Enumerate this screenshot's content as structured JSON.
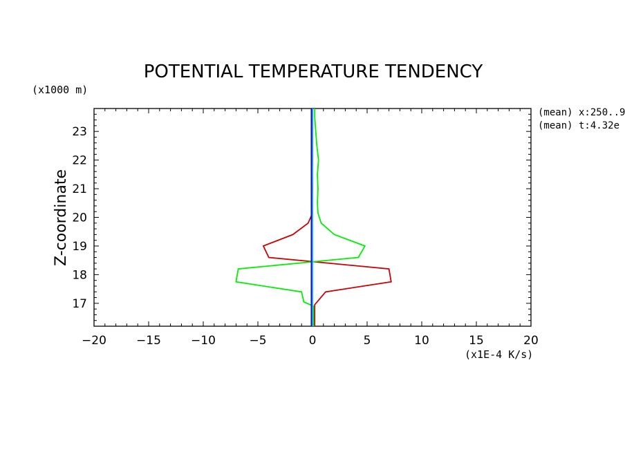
{
  "chart_data": {
    "type": "line",
    "title": "POTENTIAL TEMPERATURE TENDENCY",
    "xlabel": "",
    "ylabel": "Z-coordinate",
    "x_unit_label": "(x1E-4 K/s)",
    "y_unit_label": "(x1000 m)",
    "xlim": [
      -20,
      20
    ],
    "ylim": [
      16.2,
      23.8
    ],
    "x_ticks": [
      -20,
      -15,
      -10,
      -5,
      0,
      5,
      10,
      15,
      20
    ],
    "x_tick_labels": [
      "−20",
      "−15",
      "−10",
      "−5",
      "0",
      "5",
      "10",
      "15",
      "20"
    ],
    "y_ticks": [
      17,
      18,
      19,
      20,
      21,
      22,
      23
    ],
    "y_tick_labels": [
      "17",
      "18",
      "19",
      "20",
      "21",
      "22",
      "23"
    ],
    "grid": false,
    "annotations": [
      "(mean) x:250..9",
      "(mean) t:4.32e"
    ],
    "series": [
      {
        "color": "#cc0000",
        "points": [
          [
            0.2,
            16.2
          ],
          [
            0.2,
            16.95
          ],
          [
            1.2,
            17.4
          ],
          [
            7.2,
            17.75
          ],
          [
            7.0,
            18.2
          ],
          [
            -4.0,
            18.6
          ],
          [
            -4.5,
            19.0
          ],
          [
            -1.8,
            19.4
          ],
          [
            -0.4,
            19.8
          ],
          [
            0.0,
            20.15
          ],
          [
            -0.05,
            20.5
          ],
          [
            0.0,
            21.0
          ],
          [
            -0.05,
            21.5
          ],
          [
            0.0,
            22.0
          ],
          [
            0.0,
            22.5
          ],
          [
            0.0,
            23.0
          ],
          [
            0.0,
            23.8
          ]
        ]
      },
      {
        "color": "#00ee00",
        "points": [
          [
            0.1,
            16.2
          ],
          [
            0.1,
            16.9
          ],
          [
            -0.8,
            17.05
          ],
          [
            -1.0,
            17.4
          ],
          [
            -7.0,
            17.75
          ],
          [
            -6.8,
            18.2
          ],
          [
            4.2,
            18.6
          ],
          [
            4.8,
            19.0
          ],
          [
            2.0,
            19.4
          ],
          [
            0.8,
            19.8
          ],
          [
            0.5,
            20.15
          ],
          [
            0.45,
            20.5
          ],
          [
            0.5,
            21.0
          ],
          [
            0.45,
            21.5
          ],
          [
            0.55,
            22.0
          ],
          [
            0.4,
            22.5
          ],
          [
            0.3,
            23.0
          ],
          [
            0.2,
            23.5
          ],
          [
            0.2,
            23.8
          ]
        ]
      },
      {
        "color": "#00bbff",
        "points": [
          [
            0.0,
            16.2
          ],
          [
            0.0,
            23.8
          ]
        ]
      },
      {
        "color": "#0000cc",
        "points": [
          [
            -0.1,
            16.2
          ],
          [
            -0.1,
            23.8
          ]
        ]
      }
    ]
  }
}
